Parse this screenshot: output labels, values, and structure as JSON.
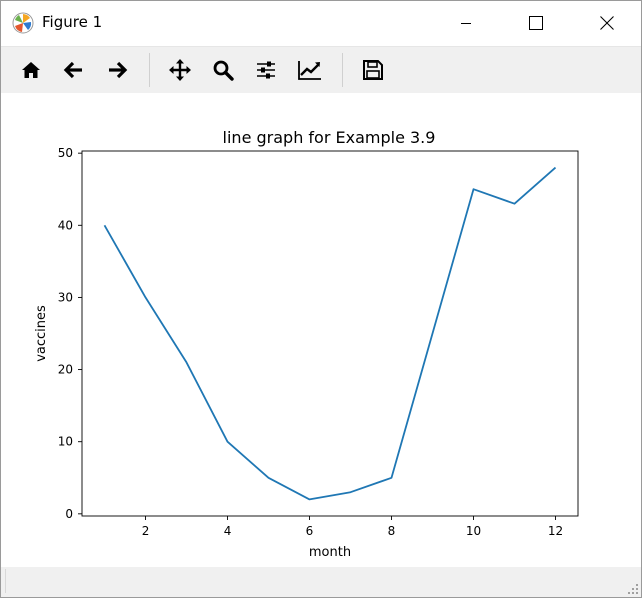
{
  "window": {
    "title": "Figure 1"
  },
  "toolbar": {
    "buttons": [
      {
        "name": "home-icon",
        "tooltip": "Reset original view"
      },
      {
        "name": "back-arrow-icon",
        "tooltip": "Back to previous view"
      },
      {
        "name": "forward-arrow-icon",
        "tooltip": "Forward to next view"
      },
      {
        "name": "pan-move-icon",
        "tooltip": "Pan axes"
      },
      {
        "name": "zoom-magnifier-icon",
        "tooltip": "Zoom to rectangle"
      },
      {
        "name": "configure-subplots-icon",
        "tooltip": "Configure subplots"
      },
      {
        "name": "edit-axis-icon",
        "tooltip": "Edit axis, curve and image parameters"
      },
      {
        "name": "save-disk-icon",
        "tooltip": "Save the figure"
      }
    ]
  },
  "colors": {
    "line": "#1f77b4",
    "toolbar_bg": "#f0f0f0"
  },
  "chart_data": {
    "type": "line",
    "title": "line graph for Example 3.9",
    "xlabel": "month",
    "ylabel": "vaccines",
    "x": [
      1,
      2,
      3,
      4,
      5,
      6,
      7,
      8,
      9,
      10,
      11,
      12
    ],
    "series": [
      {
        "values": [
          40,
          30,
          21,
          10,
          5,
          2,
          3,
          5,
          25,
          45,
          43,
          48
        ]
      }
    ],
    "xlim": [
      0.45,
      12.55
    ],
    "ylim": [
      -0.3,
      50.3
    ],
    "xticks": [
      2,
      4,
      6,
      8,
      10,
      12
    ],
    "yticks": [
      0,
      10,
      20,
      30,
      40,
      50
    ],
    "grid": false,
    "legend": "none"
  }
}
